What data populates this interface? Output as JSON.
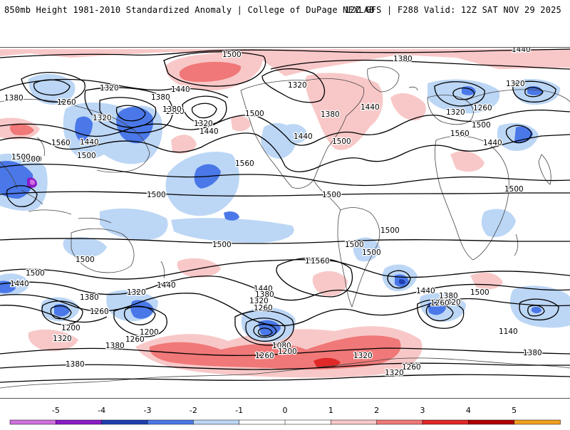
{
  "header": {
    "title": "850mb Height 1981-2010 Standardized Anomaly | College of DuPage NEXLAB",
    "run_info": "12Z GFS | F288 Valid: 12Z SAT NOV 29 2025"
  },
  "colors": {
    "neg5": "#d070e0",
    "neg4": "#8a1bc8",
    "neg3": "#1f3fb0",
    "neg2": "#4a78e8",
    "neg1": "#bcd6f5",
    "zero": "#ffffff",
    "pos1": "#f8c8c8",
    "pos2": "#f07878",
    "pos3": "#e02828",
    "pos4": "#b00000",
    "pos5": "#f0a020"
  },
  "colorbar": {
    "ticks": [
      "-5",
      "-4",
      "-3",
      "-2",
      "-1",
      "0",
      "1",
      "2",
      "3",
      "4",
      "5"
    ]
  },
  "contour_labels": [
    {
      "text": "1500",
      "name": "label-1500-nw"
    },
    {
      "text": "1380",
      "name": "label-1380-np"
    },
    {
      "text": "1440",
      "name": "label-1440-arctic"
    },
    {
      "text": "1380",
      "name": "label-1380-asia"
    },
    {
      "text": "1320",
      "name": "label-1320-asia"
    },
    {
      "text": "1260",
      "name": "label-1260-asia"
    },
    {
      "text": "1320",
      "name": "label-1320-kam"
    },
    {
      "text": "1440",
      "name": "label-1440-aleut"
    },
    {
      "text": "1380",
      "name": "label-1380-ak"
    },
    {
      "text": "1320",
      "name": "label-1320-ak"
    },
    {
      "text": "1320",
      "name": "label-1320-canada"
    },
    {
      "text": "1380",
      "name": "label-1380-canada"
    },
    {
      "text": "1440",
      "name": "label-1440-us"
    },
    {
      "text": "1500",
      "name": "label-1500-us"
    },
    {
      "text": "1500",
      "name": "label-1500-westus"
    },
    {
      "text": "1440",
      "name": "label-1440-lakes"
    },
    {
      "text": "1380",
      "name": "label-1380-atl"
    },
    {
      "text": "1320",
      "name": "label-1320-atl"
    },
    {
      "text": "1560",
      "name": "label-1560-atl"
    },
    {
      "text": "1500",
      "name": "label-1500-atl"
    },
    {
      "text": "1260",
      "name": "label-1260-eur"
    },
    {
      "text": "1320",
      "name": "label-1320-eur"
    },
    {
      "text": "1440",
      "name": "label-1440-eur"
    },
    {
      "text": "1500",
      "name": "label-1500-ea"
    },
    {
      "text": "1560",
      "name": "label-1560-asia"
    },
    {
      "text": "1440",
      "name": "label-1440-asia2"
    },
    {
      "text": "1380",
      "name": "label-1380-wp"
    },
    {
      "text": "1500",
      "name": "label-1500-wp"
    },
    {
      "text": "1560",
      "name": "label-1560-pac"
    },
    {
      "text": "1500",
      "name": "label-1500-pac"
    },
    {
      "text": "1500",
      "name": "label-1500-sam"
    },
    {
      "text": "1500",
      "name": "label-1500-africa"
    },
    {
      "text": "1500",
      "name": "label-1500-aus"
    },
    {
      "text": "1500",
      "name": "label-1500-sp"
    },
    {
      "text": "1560",
      "name": "label-1560-sp"
    },
    {
      "text": "1500",
      "name": "label-1500-chile"
    },
    {
      "text": "1500",
      "name": "label-1500-arg"
    },
    {
      "text": "1500",
      "name": "label-1500-sio"
    },
    {
      "text": "1440",
      "name": "label-1440-sio"
    },
    {
      "text": "1380",
      "name": "label-1380-sio"
    },
    {
      "text": "1320",
      "name": "label-1320-sio"
    },
    {
      "text": "1260",
      "name": "label-1260-sio"
    },
    {
      "text": "1200",
      "name": "label-1200-sio"
    },
    {
      "text": "1440",
      "name": "label-1440-sp2"
    },
    {
      "text": "1380",
      "name": "label-1380-sp2"
    },
    {
      "text": "1320",
      "name": "label-1320-sp2"
    },
    {
      "text": "1260",
      "name": "label-1260-sp2"
    },
    {
      "text": "1080",
      "name": "label-1080-sp"
    },
    {
      "text": "1200",
      "name": "label-1200-sp"
    },
    {
      "text": "1260",
      "name": "label-1260-sp3"
    },
    {
      "text": "1320",
      "name": "label-1320-ant"
    },
    {
      "text": "1260",
      "name": "label-1260-ant"
    },
    {
      "text": "1320",
      "name": "label-1320-ant2"
    },
    {
      "text": "1440",
      "name": "label-1440-satl"
    },
    {
      "text": "1380",
      "name": "label-1380-satl"
    },
    {
      "text": "1320",
      "name": "label-1320-satl"
    },
    {
      "text": "1260",
      "name": "label-1260-satl"
    },
    {
      "text": "1500",
      "name": "label-1500-satl"
    },
    {
      "text": "1140",
      "name": "label-1140-sio2"
    },
    {
      "text": "1380",
      "name": "label-1380-far"
    },
    {
      "text": "1380",
      "name": "label-1380-sw"
    },
    {
      "text": "1320",
      "name": "label-1320-sw"
    },
    {
      "text": "1380",
      "name": "label-1380-sw2"
    },
    {
      "text": "1260",
      "name": "label-1260-sw"
    },
    {
      "text": "1200",
      "name": "label-1200-sw"
    },
    {
      "text": "1440",
      "name": "label-1440-eur2"
    },
    {
      "text": "1500",
      "name": "label-1500-eur2"
    },
    {
      "text": "1500",
      "name": "label-1500-wp2"
    },
    {
      "text": "1560",
      "name": "label-1560-wp"
    },
    {
      "text": "1440",
      "name": "label-1440-wp"
    },
    {
      "text": "1500",
      "name": "label-1500-sib"
    }
  ]
}
